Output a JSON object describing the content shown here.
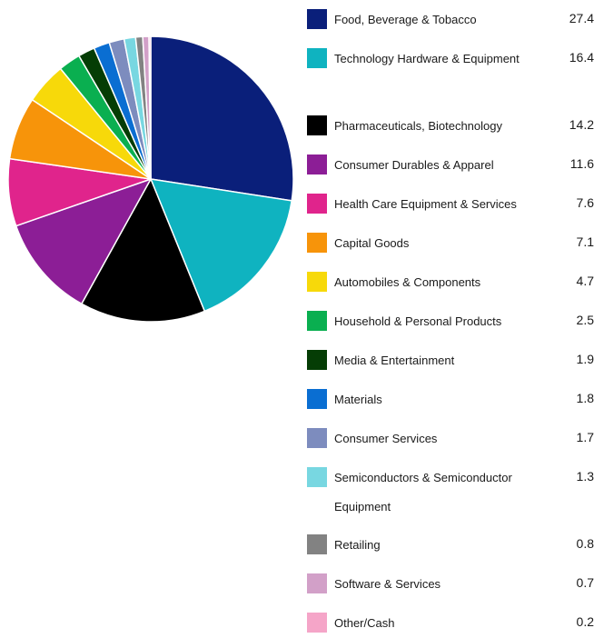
{
  "chart_data": {
    "type": "pie",
    "title": "",
    "slices": [
      {
        "label": "Food, Beverage & Tobacco",
        "value": 27.4,
        "color": "#0a1f7a"
      },
      {
        "label": "Technology Hardware & Equipment",
        "value": 16.4,
        "color": "#0fb3c0"
      },
      {
        "label": "Pharmaceuticals, Biotechnology",
        "value": 14.2,
        "color": "#000000"
      },
      {
        "label": "Consumer Durables & Apparel",
        "value": 11.6,
        "color": "#8c1e96"
      },
      {
        "label": "Health Care Equipment & Services",
        "value": 7.6,
        "color": "#e0248c"
      },
      {
        "label": "Capital Goods",
        "value": 7.1,
        "color": "#f7940a"
      },
      {
        "label": "Automobiles & Components",
        "value": 4.7,
        "color": "#f7d90a"
      },
      {
        "label": "Household & Personal Products",
        "value": 2.5,
        "color": "#0aaf50"
      },
      {
        "label": "Media & Entertainment",
        "value": 1.9,
        "color": "#053d05"
      },
      {
        "label": "Materials",
        "value": 1.8,
        "color": "#0a6ed2"
      },
      {
        "label": "Consumer Services",
        "value": 1.7,
        "color": "#7d8cbe"
      },
      {
        "label": "Semiconductors & Semiconductor Equipment",
        "value": 1.3,
        "color": "#78d7e1"
      },
      {
        "label": "Retailing",
        "value": 0.8,
        "color": "#828282"
      },
      {
        "label": "Software & Services",
        "value": 0.7,
        "color": "#d2a0c8"
      },
      {
        "label": "Other/Cash",
        "value": 0.2,
        "color": "#f5a5c8"
      }
    ],
    "legend": "right"
  }
}
